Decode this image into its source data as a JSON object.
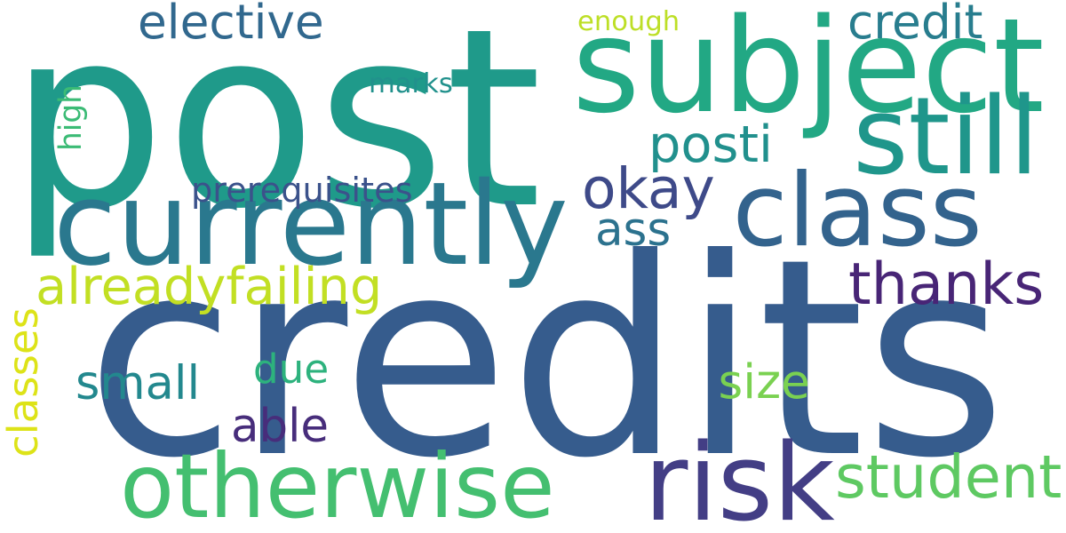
{
  "words": [
    {
      "text": "credits",
      "color": "#365c8d",
      "rotated": false
    },
    {
      "text": "post",
      "color": "#1f9a8a",
      "rotated": false
    },
    {
      "text": "subject",
      "color": "#22a884",
      "rotated": false
    },
    {
      "text": "currently",
      "color": "#2a788e",
      "rotated": false
    },
    {
      "text": "class",
      "color": "#33638d",
      "rotated": false
    },
    {
      "text": "still",
      "color": "#1f968b",
      "rotated": false
    },
    {
      "text": "otherwise",
      "color": "#44bf70",
      "rotated": false
    },
    {
      "text": "risk",
      "color": "#433e85",
      "rotated": false
    },
    {
      "text": "student",
      "color": "#5ec962",
      "rotated": false
    },
    {
      "text": "thanks",
      "color": "#482576",
      "rotated": false
    },
    {
      "text": "alreadyfailing",
      "color": "#c2df23",
      "rotated": false
    },
    {
      "text": "credit",
      "color": "#287d8e",
      "rotated": false
    },
    {
      "text": "elective",
      "color": "#31688e",
      "rotated": false
    },
    {
      "text": "okay",
      "color": "#3e4a89",
      "rotated": false
    },
    {
      "text": "posti",
      "color": "#21908d",
      "rotated": false
    },
    {
      "text": "ass",
      "color": "#2c728e",
      "rotated": false
    },
    {
      "text": "small",
      "color": "#23888e",
      "rotated": false
    },
    {
      "text": "due",
      "color": "#2db27d",
      "rotated": false
    },
    {
      "text": "able",
      "color": "#472d7b",
      "rotated": false
    },
    {
      "text": "size",
      "color": "#7ad151",
      "rotated": false
    },
    {
      "text": "classes",
      "color": "#dde318",
      "rotated": true
    },
    {
      "text": "high",
      "color": "#3bbb75",
      "rotated": true
    },
    {
      "text": "marks",
      "color": "#21918c",
      "rotated": false
    },
    {
      "text": "enough",
      "color": "#bddf26",
      "rotated": false
    },
    {
      "text": "prerequisites",
      "color": "#3b528b",
      "rotated": false
    }
  ]
}
